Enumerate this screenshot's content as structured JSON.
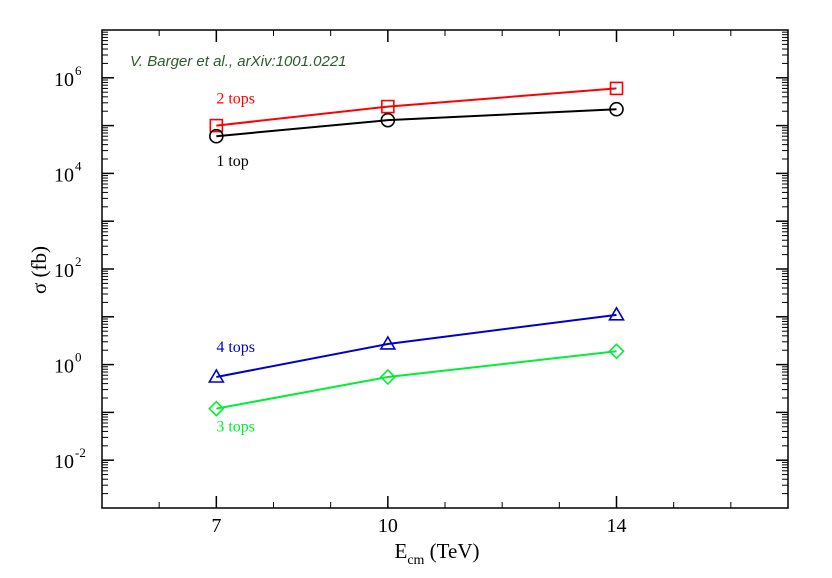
{
  "chart_data": {
    "type": "line",
    "xlabel_main": "E",
    "xlabel_sub": "cm",
    "xlabel_unit": " (TeV)",
    "ylabel": "σ (fb)",
    "annotation": "V. Barger et al., arXiv:1001.0221",
    "xlim": [
      5,
      17
    ],
    "ylim_log10": [
      -3,
      7
    ],
    "log_y": true,
    "x_ticks": [
      7,
      10,
      14
    ],
    "y_ticks": [
      {
        "base": "10",
        "exp": "6",
        "log": 6
      },
      {
        "base": "10",
        "exp": "4",
        "log": 4
      },
      {
        "base": "10",
        "exp": "2",
        "log": 2
      },
      {
        "base": "10",
        "exp": "0",
        "log": 0
      },
      {
        "base": "10",
        "exp": "-2",
        "log": -2
      }
    ],
    "x": [
      7,
      10,
      14
    ],
    "series": [
      {
        "name": "2 tops",
        "color": "#ff0000",
        "marker": "square",
        "values": [
          100000,
          250000,
          600000
        ]
      },
      {
        "name": "1 top",
        "color": "#000000",
        "marker": "circle",
        "values": [
          60000,
          130000,
          220000
        ]
      },
      {
        "name": "4 tops",
        "color": "#0000cc",
        "marker": "triangle",
        "values": [
          0.55,
          2.7,
          11
        ]
      },
      {
        "name": "3 tops",
        "color": "#00ee33",
        "marker": "diamond",
        "values": [
          0.12,
          0.55,
          1.9
        ]
      }
    ],
    "annotation_color": "#2d5a2d"
  }
}
